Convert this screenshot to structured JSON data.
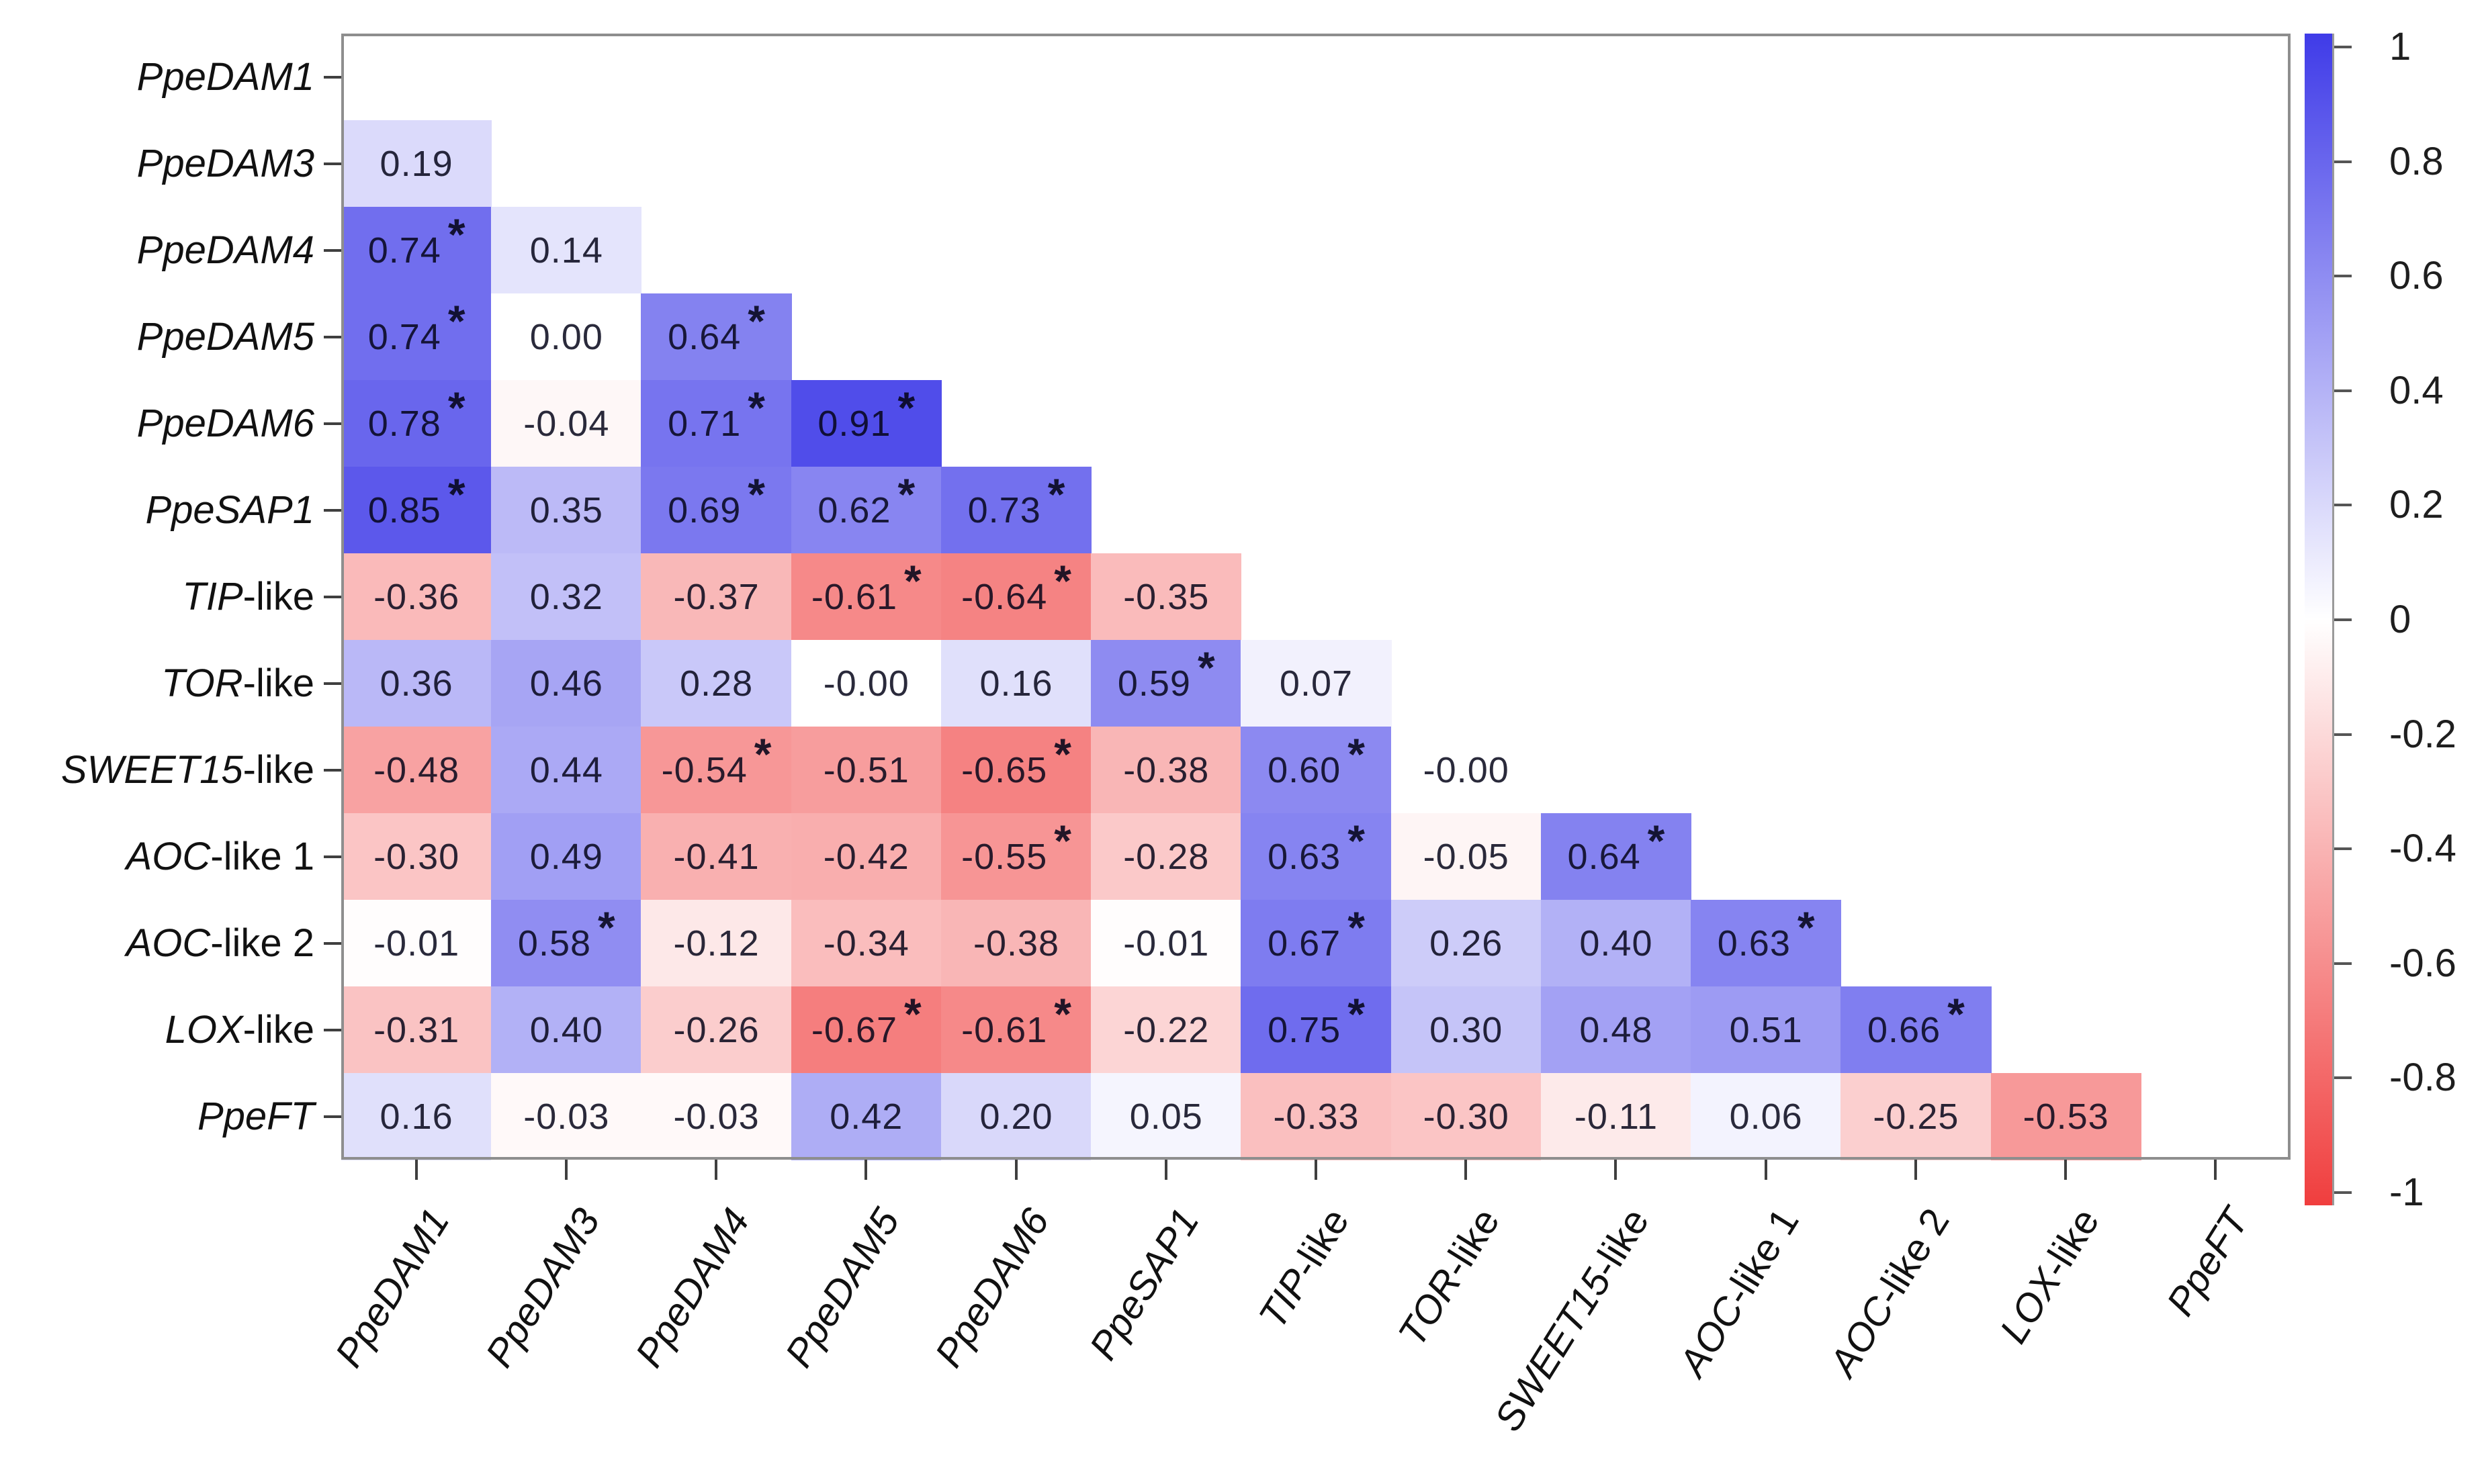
{
  "figure": {
    "kind": "correlation matrix heatmap, lower triangle",
    "significance_marker": "*"
  },
  "chart_data": {
    "type": "heatmap",
    "subtype": "correlation-lower-triangle",
    "categories": [
      "PpeDAM1",
      "PpeDAM3",
      "PpeDAM4",
      "PpeDAM5",
      "PpeDAM6",
      "PpeSAP1",
      "TIP-like",
      "TOR-like",
      "SWEET15-like",
      "AOC-like 1",
      "AOC-like 2",
      "LOX-like",
      "PpeFT"
    ],
    "category_parts": [
      {
        "em": "PpeDAM1",
        "plain": ""
      },
      {
        "em": "PpeDAM3",
        "plain": ""
      },
      {
        "em": "PpeDAM4",
        "plain": ""
      },
      {
        "em": "PpeDAM5",
        "plain": ""
      },
      {
        "em": "PpeDAM6",
        "plain": ""
      },
      {
        "em": "PpeSAP1",
        "plain": ""
      },
      {
        "em": "TIP",
        "plain": "-like"
      },
      {
        "em": "TOR",
        "plain": "-like"
      },
      {
        "em": "SWEET15",
        "plain": "-like"
      },
      {
        "em": "AOC",
        "plain": "-like 1"
      },
      {
        "em": "AOC",
        "plain": "-like 2"
      },
      {
        "em": "LOX",
        "plain": "-like"
      },
      {
        "em": "PpeFT",
        "plain": ""
      }
    ],
    "values": [
      [],
      [
        "0.19"
      ],
      [
        "0.74",
        "0.14"
      ],
      [
        "0.74",
        "0.00",
        "0.64"
      ],
      [
        "0.78",
        "-0.04",
        "0.71",
        "0.91"
      ],
      [
        "0.85",
        "0.35",
        "0.69",
        "0.62",
        "0.73"
      ],
      [
        "-0.36",
        "0.32",
        "-0.37",
        "-0.61",
        "-0.64",
        "-0.35"
      ],
      [
        "0.36",
        "0.46",
        "0.28",
        "-0.00",
        "0.16",
        "0.59",
        "0.07"
      ],
      [
        "-0.48",
        "0.44",
        "-0.54",
        "-0.51",
        "-0.65",
        "-0.38",
        "0.60",
        "-0.00"
      ],
      [
        "-0.30",
        "0.49",
        "-0.41",
        "-0.42",
        "-0.55",
        "-0.28",
        "0.63",
        "-0.05",
        "0.64"
      ],
      [
        "-0.01",
        "0.58",
        "-0.12",
        "-0.34",
        "-0.38",
        "-0.01",
        "0.67",
        "0.26",
        "0.40",
        "0.63"
      ],
      [
        "-0.31",
        "0.40",
        "-0.26",
        "-0.67",
        "-0.61",
        "-0.22",
        "0.75",
        "0.30",
        "0.48",
        "0.51",
        "0.66"
      ],
      [
        "0.16",
        "-0.03",
        "-0.03",
        "0.42",
        "0.20",
        "0.05",
        "-0.33",
        "-0.30",
        "-0.11",
        "0.06",
        "-0.25",
        "-0.53"
      ]
    ],
    "significant": [
      [],
      [
        false
      ],
      [
        true,
        false
      ],
      [
        true,
        false,
        true
      ],
      [
        true,
        false,
        true,
        true
      ],
      [
        true,
        false,
        true,
        true,
        true
      ],
      [
        false,
        false,
        false,
        true,
        true,
        false
      ],
      [
        false,
        false,
        false,
        false,
        false,
        true,
        false
      ],
      [
        false,
        false,
        true,
        false,
        true,
        false,
        true,
        false
      ],
      [
        false,
        false,
        false,
        false,
        true,
        false,
        true,
        false,
        true
      ],
      [
        false,
        true,
        false,
        false,
        false,
        false,
        true,
        false,
        false,
        true
      ],
      [
        false,
        false,
        false,
        true,
        true,
        false,
        true,
        false,
        false,
        false,
        true
      ],
      [
        false,
        false,
        false,
        false,
        false,
        false,
        false,
        false,
        false,
        false,
        false,
        false
      ]
    ],
    "colorbar": {
      "range": [
        -1,
        1
      ],
      "tick_labels": [
        "1",
        "0.8",
        "0.6",
        "0.4",
        "0.2",
        "0",
        "-0.2",
        "-0.4",
        "-0.6",
        "-0.8",
        "-1"
      ],
      "pos_color": "#3F3BE8",
      "mid_color": "#FFFFFF",
      "neg_color": "#F03E3E",
      "position": "right"
    },
    "legend_position": "right colorbar",
    "grid": false
  }
}
